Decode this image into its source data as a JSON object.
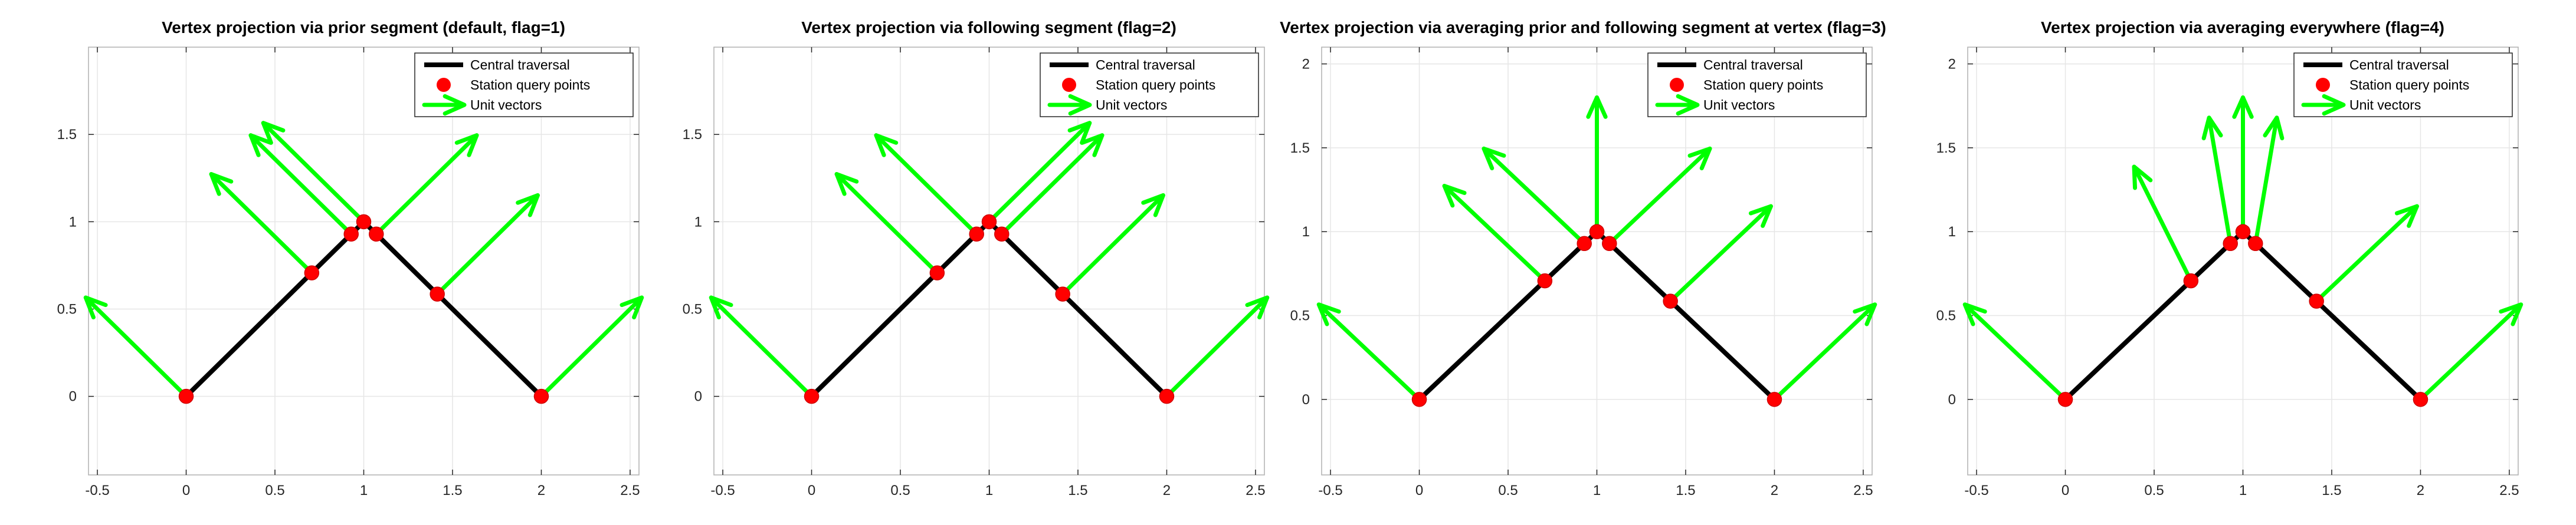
{
  "chart_data": [
    {
      "type": "line",
      "title": "Vertex projection via prior segment (default, flag=1)",
      "xlim": [
        -0.55,
        2.55
      ],
      "ylim": [
        -0.45,
        2.0
      ],
      "xticks": [
        -0.5,
        0,
        0.5,
        1,
        1.5,
        2,
        2.5
      ],
      "xtick_labels": [
        "-0.5",
        "0",
        "0.5",
        "1",
        "1.5",
        "2",
        "2.5"
      ],
      "yticks": [
        0,
        0.5,
        1,
        1.5
      ],
      "ytick_labels": [
        "0",
        "0.5",
        "1",
        "1.5"
      ],
      "grid": true,
      "legend": {
        "position": "top-right",
        "entries": [
          "Central traversal",
          "Station query points",
          "Unit vectors"
        ]
      },
      "traversal": {
        "name": "Central traversal",
        "color": "#000000",
        "x": [
          0,
          1,
          2
        ],
        "y": [
          0,
          1,
          0
        ]
      },
      "stations": {
        "name": "Station query points",
        "color": "#ff0000",
        "x": [
          0,
          0.7071,
          0.9293,
          1,
          1.0707,
          1.4142,
          2
        ],
        "y": [
          0,
          0.7071,
          0.9293,
          1,
          0.9293,
          0.5858,
          0
        ]
      },
      "vectors": {
        "name": "Unit vectors",
        "color": "#00ff00",
        "dx": [
          -0.5657,
          -0.5657,
          -0.5657,
          -0.5657,
          0.5657,
          0.5657,
          0.5657
        ],
        "dy": [
          0.5657,
          0.5657,
          0.5657,
          0.5657,
          0.5657,
          0.5657,
          0.5657
        ]
      }
    },
    {
      "type": "line",
      "title": "Vertex projection via following segment (flag=2)",
      "xlim": [
        -0.55,
        2.55
      ],
      "ylim": [
        -0.45,
        2.0
      ],
      "xticks": [
        -0.5,
        0,
        0.5,
        1,
        1.5,
        2,
        2.5
      ],
      "xtick_labels": [
        "-0.5",
        "0",
        "0.5",
        "1",
        "1.5",
        "2",
        "2.5"
      ],
      "yticks": [
        0,
        0.5,
        1,
        1.5
      ],
      "ytick_labels": [
        "0",
        "0.5",
        "1",
        "1.5"
      ],
      "grid": true,
      "legend": {
        "position": "top-right",
        "entries": [
          "Central traversal",
          "Station query points",
          "Unit vectors"
        ]
      },
      "traversal": {
        "name": "Central traversal",
        "color": "#000000",
        "x": [
          0,
          1,
          2
        ],
        "y": [
          0,
          1,
          0
        ]
      },
      "stations": {
        "name": "Station query points",
        "color": "#ff0000",
        "x": [
          0,
          0.7071,
          0.9293,
          1,
          1.0707,
          1.4142,
          2
        ],
        "y": [
          0,
          0.7071,
          0.9293,
          1,
          0.9293,
          0.5858,
          0
        ]
      },
      "vectors": {
        "name": "Unit vectors",
        "color": "#00ff00",
        "dx": [
          -0.5657,
          -0.5657,
          -0.5657,
          0.5657,
          0.5657,
          0.5657,
          0.5657
        ],
        "dy": [
          0.5657,
          0.5657,
          0.5657,
          0.5657,
          0.5657,
          0.5657,
          0.5657
        ]
      }
    },
    {
      "type": "line",
      "title": "Vertex projection via averaging prior and following segment at vertex (flag=3)",
      "xlim": [
        -0.55,
        2.55
      ],
      "ylim": [
        -0.45,
        2.1
      ],
      "xticks": [
        -0.5,
        0,
        0.5,
        1,
        1.5,
        2,
        2.5
      ],
      "xtick_labels": [
        "-0.5",
        "0",
        "0.5",
        "1",
        "1.5",
        "2",
        "2.5"
      ],
      "yticks": [
        0,
        0.5,
        1,
        1.5,
        2
      ],
      "ytick_labels": [
        "0",
        "0.5",
        "1",
        "1.5",
        "2"
      ],
      "grid": true,
      "legend": {
        "position": "top-right",
        "entries": [
          "Central traversal",
          "Station query points",
          "Unit vectors"
        ]
      },
      "traversal": {
        "name": "Central traversal",
        "color": "#000000",
        "x": [
          0,
          1,
          2
        ],
        "y": [
          0,
          1,
          0
        ]
      },
      "stations": {
        "name": "Station query points",
        "color": "#ff0000",
        "x": [
          0,
          0.7071,
          0.9293,
          1,
          1.0707,
          1.4142,
          2
        ],
        "y": [
          0,
          0.7071,
          0.9293,
          1,
          0.9293,
          0.5858,
          0
        ]
      },
      "vectors": {
        "name": "Unit vectors",
        "color": "#00ff00",
        "dx": [
          -0.5657,
          -0.5657,
          -0.5657,
          0,
          0.5657,
          0.5657,
          0.5657
        ],
        "dy": [
          0.5657,
          0.5657,
          0.5657,
          0.8,
          0.5657,
          0.5657,
          0.5657
        ]
      }
    },
    {
      "type": "line",
      "title": "Vertex projection via averaging everywhere (flag=4)",
      "xlim": [
        -0.55,
        2.55
      ],
      "ylim": [
        -0.45,
        2.1
      ],
      "xticks": [
        -0.5,
        0,
        0.5,
        1,
        1.5,
        2,
        2.5
      ],
      "xtick_labels": [
        "-0.5",
        "0",
        "0.5",
        "1",
        "1.5",
        "2",
        "2.5"
      ],
      "yticks": [
        0,
        0.5,
        1,
        1.5,
        2
      ],
      "ytick_labels": [
        "0",
        "0.5",
        "1",
        "1.5",
        "2"
      ],
      "grid": true,
      "legend": {
        "position": "top-right",
        "entries": [
          "Central traversal",
          "Station query points",
          "Unit vectors"
        ]
      },
      "traversal": {
        "name": "Central traversal",
        "color": "#000000",
        "x": [
          0,
          1,
          2
        ],
        "y": [
          0,
          1,
          0
        ]
      },
      "stations": {
        "name": "Station query points",
        "color": "#ff0000",
        "x": [
          0,
          0.7071,
          0.9293,
          1,
          1.0707,
          1.4142,
          2
        ],
        "y": [
          0,
          0.7071,
          0.9293,
          1,
          0.9293,
          0.5858,
          0
        ]
      },
      "vectors": {
        "name": "Unit vectors",
        "color": "#00ff00",
        "dx": [
          -0.5657,
          -0.32,
          -0.12,
          0,
          0.12,
          0.5657,
          0.5657
        ],
        "dy": [
          0.5657,
          0.68,
          0.75,
          0.8,
          0.75,
          0.5657,
          0.5657
        ]
      }
    }
  ]
}
